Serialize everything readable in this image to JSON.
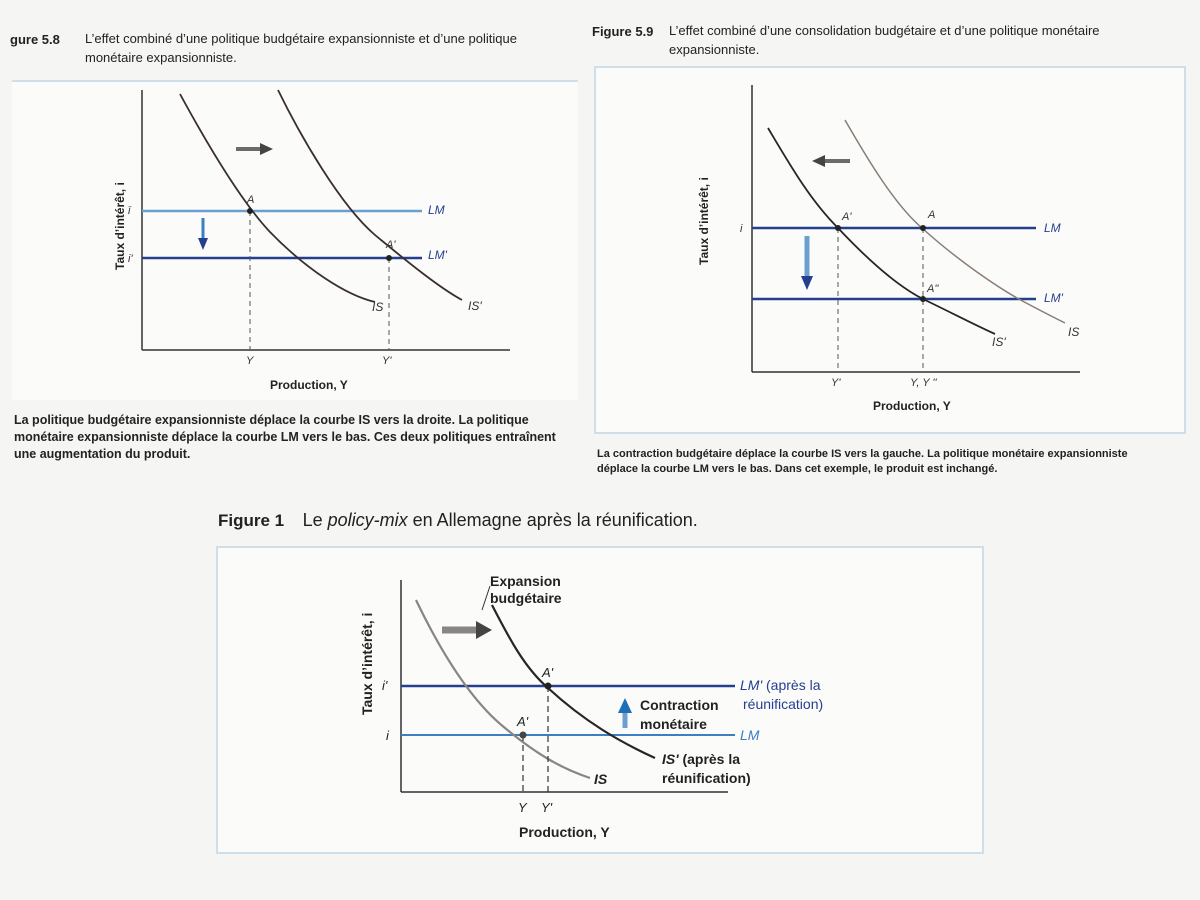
{
  "fig58": {
    "number": "gure 5.8",
    "title_line1": "L’effet combiné d’une politique budgétaire expansionniste et d’une politique",
    "title_line2": "monétaire expansionniste.",
    "ylabel": "Taux d’intérêt, i",
    "xlabel": "Production, Y",
    "ticks_y": [
      "ī",
      "i'"
    ],
    "ticks_x": [
      "Y",
      "Y'"
    ],
    "points": [
      "A",
      "A'"
    ],
    "curves": {
      "LM": "LM",
      "LM2": "LM'",
      "IS": "IS",
      "IS2": "IS'"
    },
    "caption_line1": "La politique budgétaire expansionniste déplace la courbe IS vers la droite. La politique",
    "caption_line2": "monétaire expansionniste déplace la courbe LM vers le bas. Ces deux politiques entraînent",
    "caption_line3": "une augmentation du produit."
  },
  "fig59": {
    "number": "Figure 5.9",
    "title_line1": "L’effet combiné d’une consolidation budgétaire et d’une politique monétaire",
    "title_line2": "expansionniste.",
    "ylabel": "Taux d’intérêt, i",
    "xlabel": "Production, Y",
    "ticks_y": [
      "i"
    ],
    "ticks_x": [
      "Y'",
      "Y, Y ''"
    ],
    "points": [
      "A'",
      "A",
      "A''"
    ],
    "curves": {
      "LM": "LM",
      "LM2": "LM'",
      "IS": "IS",
      "IS2": "IS'"
    },
    "caption_line1": "La contraction budgétaire déplace la courbe IS vers la gauche. La politique monétaire expansionniste",
    "caption_line2": "déplace la courbe LM vers le bas. Dans cet exemple, le produit est inchangé."
  },
  "fig1": {
    "number": "Figure 1",
    "title_pre": "Le ",
    "title_ital": "policy-mix",
    "title_post": " en Allemagne après la réunification.",
    "ylabel": "Taux d’intérêt, i",
    "xlabel": "Production, Y",
    "ticks_y": [
      "i'",
      "i"
    ],
    "ticks_x": [
      "Y",
      "Y'"
    ],
    "points": [
      "A'",
      "A'"
    ],
    "expansion_line1": "Expansion",
    "expansion_line2": "budgétaire",
    "contraction_line1": "Contraction",
    "contraction_line2": "monétaire",
    "lm2_line1": "LM' (après la",
    "lm2_line2": "réunification)",
    "lm": "LM",
    "is2_line1": "IS' (après la",
    "is2_line2": "réunification)",
    "is": "IS"
  },
  "colors": {
    "dark_blue": "#243f8f",
    "light_blue": "#6a9fd0",
    "mid_blue": "#3d7fc2",
    "curve_dark": "#2a2525",
    "curve_gray": "#8a8585",
    "curve_brown": "#7a6a60",
    "arrow_gray": "#6b6b6b",
    "panel_border": "#cfdfea"
  }
}
